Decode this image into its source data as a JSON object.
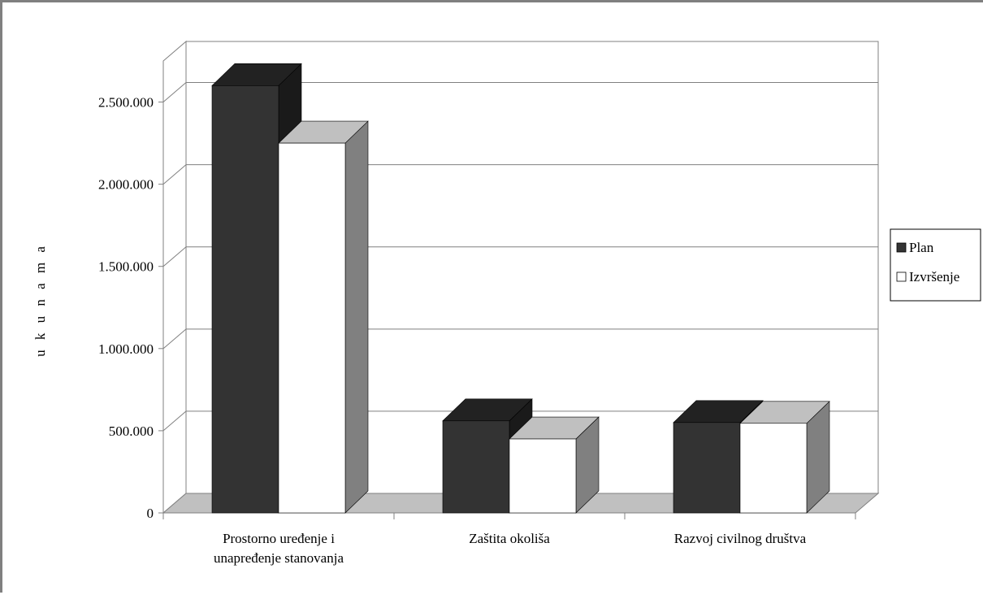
{
  "chart_data": {
    "type": "bar",
    "title": "",
    "xlabel": "",
    "ylabel": "u k u n a m a",
    "categories": [
      [
        "Prostorno uređenje i",
        "unapređenje stanovanja"
      ],
      [
        "Zaštita okoliša"
      ],
      [
        "Razvoj civilnog društva"
      ]
    ],
    "series": [
      {
        "name": "Plan",
        "values": [
          2600000,
          560000,
          550000
        ],
        "color": "#333333",
        "top_color": "#222222",
        "side_color": "#1a1a1a"
      },
      {
        "name": "Izvršenje",
        "values": [
          2250000,
          450000,
          545000
        ],
        "color": "#ffffff",
        "top_color": "#c0c0c0",
        "side_color": "#808080"
      }
    ],
    "ylim": [
      0,
      2750000
    ],
    "yticks": [
      0,
      500000,
      1000000,
      1500000,
      2000000,
      2500000
    ],
    "ytick_labels": [
      "0",
      "500.000",
      "1.000.000",
      "1.500.000",
      "2.000.000",
      "2.500.000"
    ],
    "grid": true,
    "legend_position": "right",
    "style": "3d-clustered-column"
  }
}
